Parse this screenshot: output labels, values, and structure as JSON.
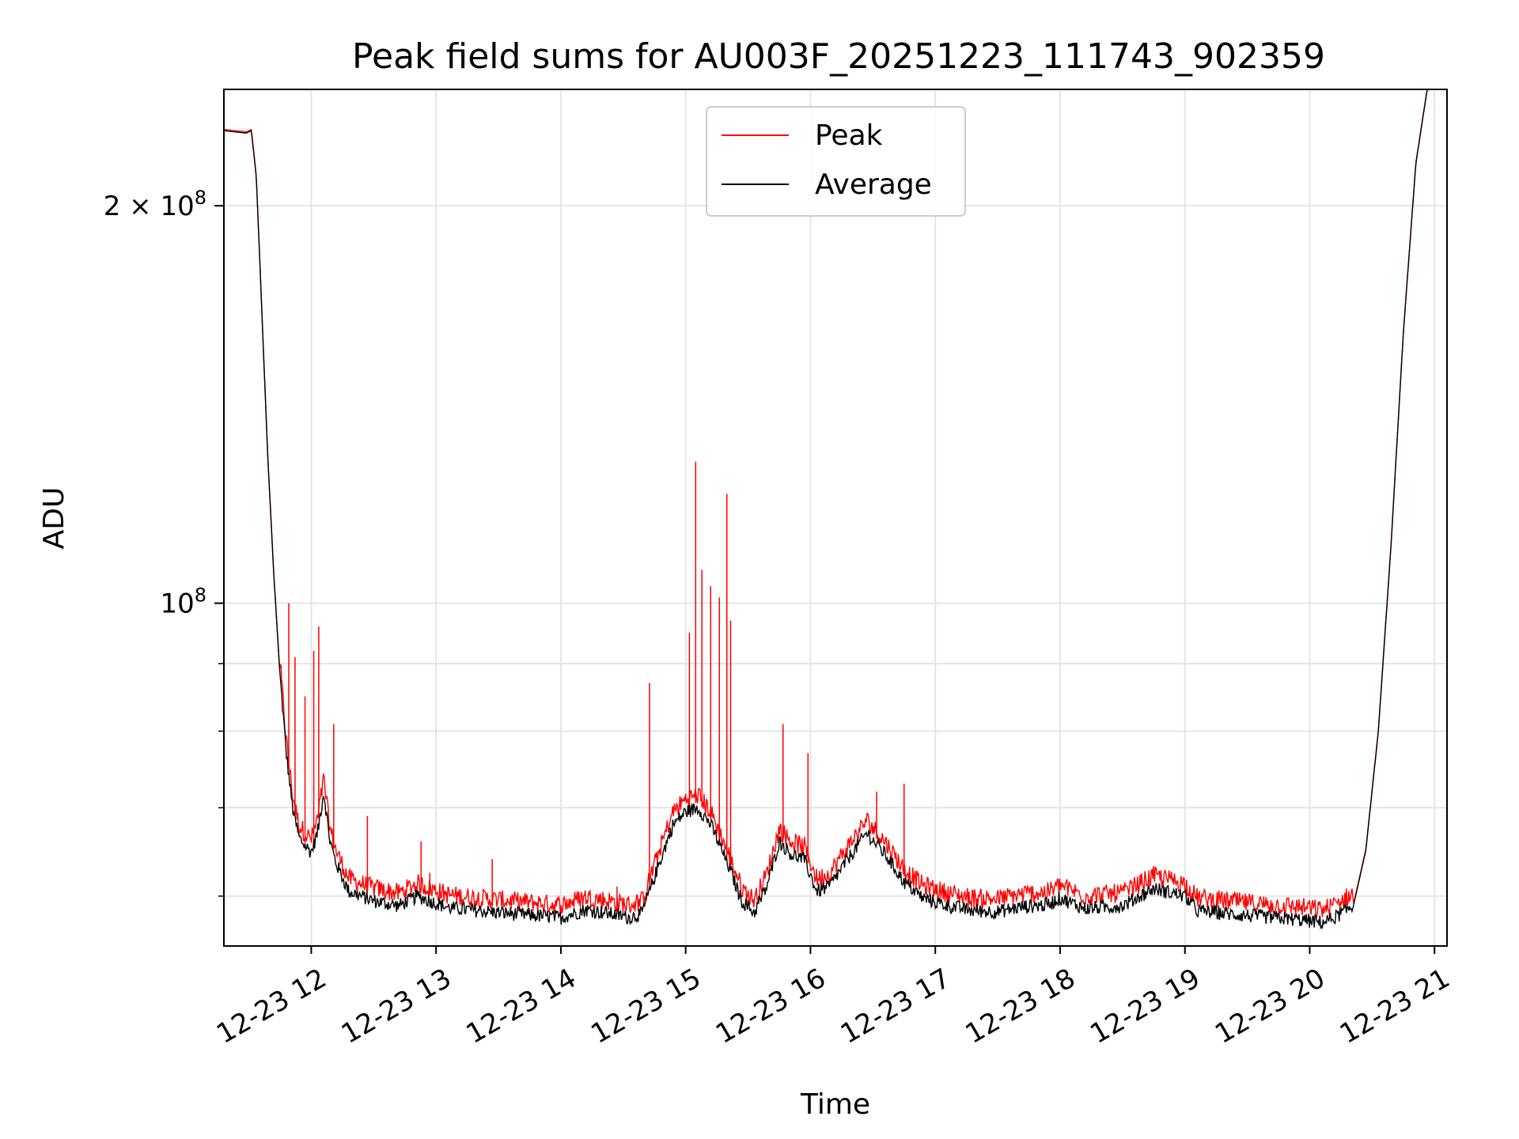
{
  "chart_data": {
    "type": "line",
    "title": "Peak field sums for AU003F_20251223_111743_902359",
    "xlabel": "Time",
    "ylabel": "ADU",
    "yscale": "log",
    "xlim_hours": [
      11.3,
      21.1
    ],
    "ylim": [
      55000000,
      245000000
    ],
    "grid": true,
    "legend_position": "top-center",
    "x_ticks": [
      {
        "h": 12,
        "label": "12-23 12"
      },
      {
        "h": 13,
        "label": "12-23 13"
      },
      {
        "h": 14,
        "label": "12-23 14"
      },
      {
        "h": 15,
        "label": "12-23 15"
      },
      {
        "h": 16,
        "label": "12-23 16"
      },
      {
        "h": 17,
        "label": "12-23 17"
      },
      {
        "h": 18,
        "label": "12-23 18"
      },
      {
        "h": 19,
        "label": "12-23 19"
      },
      {
        "h": 20,
        "label": "12-23 20"
      },
      {
        "h": 21,
        "label": "12-23 21"
      }
    ],
    "y_ticks_major": [
      {
        "v": 100000000,
        "base": "10",
        "exp": "8",
        "prefix": ""
      },
      {
        "v": 200000000,
        "base": "10",
        "exp": "8",
        "prefix": "2 × "
      }
    ],
    "y_ticks_minor": [
      60000000,
      70000000,
      80000000,
      90000000
    ],
    "series": [
      {
        "name": "Average",
        "color": "#000000",
        "points": [
          [
            11.3,
            228000000
          ],
          [
            11.48,
            227000000
          ],
          [
            11.52,
            228000000
          ],
          [
            11.56,
            210000000
          ],
          [
            11.6,
            170000000
          ],
          [
            11.65,
            130000000
          ],
          [
            11.7,
            105000000
          ],
          [
            11.75,
            88000000
          ],
          [
            11.8,
            77000000
          ],
          [
            11.85,
            70000000
          ],
          [
            11.9,
            66500000
          ],
          [
            11.95,
            65500000
          ],
          [
            12.0,
            64800000
          ],
          [
            12.05,
            67000000
          ],
          [
            12.1,
            72000000
          ],
          [
            12.15,
            66000000
          ],
          [
            12.2,
            63500000
          ],
          [
            12.3,
            60500000
          ],
          [
            12.5,
            59500000
          ],
          [
            12.7,
            59000000
          ],
          [
            12.85,
            60000000
          ],
          [
            12.95,
            59500000
          ],
          [
            13.1,
            58800000
          ],
          [
            13.5,
            58300000
          ],
          [
            14.0,
            57800000
          ],
          [
            14.2,
            58600000
          ],
          [
            14.35,
            58300000
          ],
          [
            14.55,
            57800000
          ],
          [
            14.65,
            58200000
          ],
          [
            14.8,
            64000000
          ],
          [
            14.9,
            68000000
          ],
          [
            15.0,
            69500000
          ],
          [
            15.1,
            70000000
          ],
          [
            15.2,
            68000000
          ],
          [
            15.35,
            63000000
          ],
          [
            15.45,
            59500000
          ],
          [
            15.55,
            58300000
          ],
          [
            15.65,
            61000000
          ],
          [
            15.75,
            66000000
          ],
          [
            15.85,
            64500000
          ],
          [
            15.95,
            64000000
          ],
          [
            16.05,
            60500000
          ],
          [
            16.15,
            61000000
          ],
          [
            16.3,
            64000000
          ],
          [
            16.45,
            67000000
          ],
          [
            16.6,
            64500000
          ],
          [
            16.75,
            61500000
          ],
          [
            16.9,
            59800000
          ],
          [
            17.1,
            59000000
          ],
          [
            17.3,
            58500000
          ],
          [
            17.5,
            58400000
          ],
          [
            17.7,
            58900000
          ],
          [
            17.9,
            59100000
          ],
          [
            18.0,
            59800000
          ],
          [
            18.2,
            58700000
          ],
          [
            18.5,
            59000000
          ],
          [
            18.75,
            60800000
          ],
          [
            19.0,
            60000000
          ],
          [
            19.1,
            58500000
          ],
          [
            19.4,
            58100000
          ],
          [
            19.9,
            57600000
          ],
          [
            20.1,
            57300000
          ],
          [
            20.2,
            57800000
          ],
          [
            20.35,
            59000000
          ],
          [
            20.45,
            65000000
          ],
          [
            20.55,
            80000000
          ],
          [
            20.65,
            110000000
          ],
          [
            20.75,
            160000000
          ],
          [
            20.85,
            215000000
          ],
          [
            20.95,
            248000000
          ]
        ]
      },
      {
        "name": "Peak",
        "color": "#ff0000",
        "spikes": [
          [
            11.82,
            100000000
          ],
          [
            11.87,
            91000000
          ],
          [
            11.95,
            85000000
          ],
          [
            12.02,
            92000000
          ],
          [
            12.06,
            96000000
          ],
          [
            12.18,
            81000000
          ],
          [
            12.25,
            63000000
          ],
          [
            12.45,
            69000000
          ],
          [
            12.88,
            66000000
          ],
          [
            12.95,
            62500000
          ],
          [
            13.45,
            64000000
          ],
          [
            14.45,
            61000000
          ],
          [
            14.71,
            87000000
          ],
          [
            15.03,
            95000000
          ],
          [
            15.08,
            128000000
          ],
          [
            15.13,
            106000000
          ],
          [
            15.2,
            103000000
          ],
          [
            15.27,
            101000000
          ],
          [
            15.33,
            121000000
          ],
          [
            15.36,
            97000000
          ],
          [
            15.78,
            81000000
          ],
          [
            15.98,
            77000000
          ],
          [
            16.53,
            72000000
          ],
          [
            16.75,
            73000000
          ]
        ]
      }
    ]
  },
  "legend": {
    "items": [
      {
        "label": "Peak",
        "color": "#ff0000"
      },
      {
        "label": "Average",
        "color": "#000000"
      }
    ]
  }
}
